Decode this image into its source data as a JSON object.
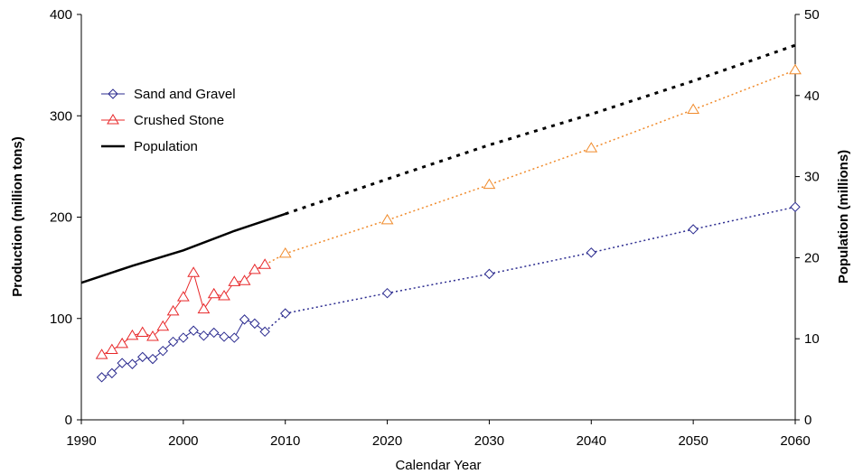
{
  "chart_data": {
    "type": "line",
    "xlabel": "Calendar Year",
    "ylabel_left": "Production (million tons)",
    "ylabel_right": "Population (millions)",
    "xlim": [
      1990,
      2060
    ],
    "ylim_left": [
      0,
      400
    ],
    "ylim_right": [
      0,
      50
    ],
    "x_ticks": [
      "1990",
      "2000",
      "2010",
      "2020",
      "2030",
      "2040",
      "2050",
      "2060"
    ],
    "y_left_ticks": [
      "0",
      "100",
      "200",
      "300",
      "400"
    ],
    "y_right_ticks": [
      "0",
      "10",
      "20",
      "30",
      "40",
      "50"
    ],
    "grid": false,
    "legend_position": "upper-left",
    "series": [
      {
        "name": "Sand and Gravel",
        "axis": "left",
        "color": "#2b2b8f",
        "marker": "diamond",
        "historical": {
          "x": [
            1992,
            1993,
            1994,
            1995,
            1996,
            1997,
            1998,
            1999,
            2000,
            2001,
            2002,
            2003,
            2004,
            2005,
            2006,
            2007,
            2008
          ],
          "y": [
            42,
            46,
            56,
            55,
            62,
            60,
            68,
            77,
            81,
            88,
            83,
            86,
            82,
            81,
            99,
            95,
            87
          ]
        },
        "projected": {
          "x": [
            2010,
            2020,
            2030,
            2040,
            2050,
            2060
          ],
          "y": [
            105,
            125,
            144,
            165,
            188,
            210
          ]
        }
      },
      {
        "name": "Crushed Stone",
        "axis": "left",
        "color": "#e8282a",
        "projected_color": "#f08a2a",
        "marker": "triangle",
        "historical": {
          "x": [
            1992,
            1993,
            1994,
            1995,
            1996,
            1997,
            1998,
            1999,
            2000,
            2001,
            2002,
            2003,
            2004,
            2005,
            2006,
            2007,
            2008
          ],
          "y": [
            64,
            69,
            75,
            83,
            86,
            82,
            92,
            107,
            121,
            145,
            109,
            124,
            122,
            136,
            137,
            148,
            153
          ]
        },
        "projected": {
          "x": [
            2010,
            2020,
            2030,
            2040,
            2050,
            2060
          ],
          "y": [
            164,
            197,
            232,
            268,
            306,
            345
          ]
        }
      },
      {
        "name": "Population",
        "axis": "right",
        "color": "#000000",
        "marker": "none",
        "historical": {
          "x": [
            1990,
            1995,
            2000,
            2005,
            2010
          ],
          "y": [
            16.9,
            19.0,
            20.9,
            23.3,
            25.4
          ]
        },
        "projected": {
          "x": [
            2010,
            2020,
            2030,
            2040,
            2050,
            2060
          ],
          "y": [
            25.4,
            29.7,
            33.9,
            37.7,
            41.8,
            46.2
          ]
        }
      }
    ]
  }
}
